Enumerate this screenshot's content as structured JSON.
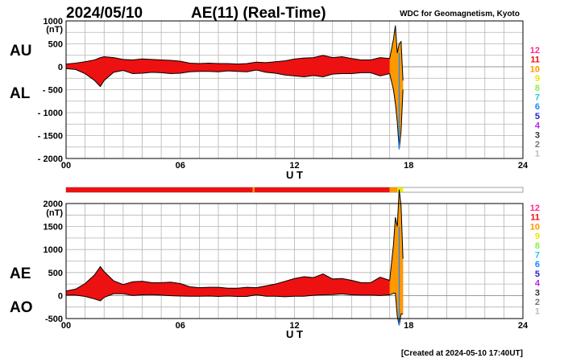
{
  "header": {
    "date": "2024/05/10",
    "title": "AE(11) (Real-Time)",
    "source": "WDC for Geomagnetism, Kyoto"
  },
  "footer": {
    "created": "[Created at 2024-05-10 17:40UT]"
  },
  "level_legend": [
    "12",
    "11",
    "10",
    "9",
    "8",
    "7",
    "6",
    "5",
    "4",
    "3",
    "2",
    "1"
  ],
  "level_colors": [
    "#ff2a8a",
    "#ee1111",
    "#ff9900",
    "#e8e800",
    "#88ee44",
    "#22ccdd",
    "#1188ff",
    "#2222cc",
    "#bb22ee",
    "#333333",
    "#777777",
    "#bbbbbb"
  ],
  "chart_data": [
    {
      "type": "area",
      "panel": "top",
      "series_labels": [
        "AU",
        "AL"
      ],
      "ylabel_unit": "(nT)",
      "xlabel": "U T",
      "xlim": [
        0,
        24
      ],
      "ylim": [
        -2000,
        1000
      ],
      "xticks": [
        "00",
        "06",
        "12",
        "18",
        "24"
      ],
      "yticks": [
        "1000",
        "500",
        "0",
        "- 500",
        "- 1000",
        "- 1500",
        "- 2000"
      ],
      "grid": true,
      "series": [
        {
          "name": "AU",
          "x": [
            0,
            0.5,
            1,
            1.5,
            1.8,
            2,
            2.5,
            3,
            3.5,
            4,
            4.5,
            5,
            5.5,
            6,
            6.5,
            7,
            7.5,
            8,
            8.5,
            9,
            9.5,
            10,
            10.5,
            11,
            11.5,
            12,
            12.5,
            13,
            13.5,
            14,
            14.5,
            15,
            15.5,
            16,
            16.5,
            17,
            17.2,
            17.3,
            17.4,
            17.5,
            17.6,
            17.7
          ],
          "y": [
            60,
            80,
            110,
            150,
            200,
            220,
            200,
            160,
            150,
            170,
            160,
            150,
            140,
            120,
            80,
            70,
            80,
            70,
            70,
            60,
            70,
            100,
            90,
            110,
            130,
            170,
            190,
            200,
            250,
            200,
            220,
            180,
            150,
            150,
            200,
            180,
            600,
            900,
            300,
            500,
            550,
            -300
          ]
        },
        {
          "name": "AL",
          "x": [
            0,
            0.5,
            1,
            1.5,
            1.8,
            2,
            2.5,
            3,
            3.5,
            4,
            4.5,
            5,
            5.5,
            6,
            6.5,
            7,
            7.5,
            8,
            8.5,
            9,
            9.5,
            10,
            10.5,
            11,
            11.5,
            12,
            12.5,
            13,
            13.5,
            14,
            14.5,
            15,
            15.5,
            16,
            16.5,
            17,
            17.2,
            17.3,
            17.4,
            17.5,
            17.6,
            17.7
          ],
          "y": [
            -40,
            -60,
            -150,
            -300,
            -430,
            -300,
            -120,
            -80,
            -150,
            -140,
            -120,
            -130,
            -150,
            -140,
            -110,
            -100,
            -100,
            -110,
            -90,
            -100,
            -110,
            -70,
            -120,
            -140,
            -180,
            -200,
            -220,
            -190,
            -220,
            -160,
            -150,
            -150,
            -130,
            -130,
            -200,
            -150,
            -500,
            -800,
            -1200,
            -1800,
            -1400,
            -500
          ]
        }
      ]
    },
    {
      "type": "area",
      "panel": "bottom",
      "series_labels": [
        "AE",
        "AO"
      ],
      "ylabel_unit": "(nT)",
      "xlabel": "U T",
      "xlim": [
        0,
        24
      ],
      "ylim": [
        -500,
        2000
      ],
      "xticks": [
        "00",
        "06",
        "12",
        "18",
        "24"
      ],
      "yticks": [
        "2000",
        "1500",
        "1000",
        "500",
        "0",
        "-500"
      ],
      "grid": true,
      "series": [
        {
          "name": "AE",
          "x": [
            0,
            0.5,
            1,
            1.5,
            1.8,
            2,
            2.5,
            3,
            3.5,
            4,
            4.5,
            5,
            5.5,
            6,
            6.5,
            7,
            7.5,
            8,
            8.5,
            9,
            9.5,
            10,
            10.5,
            11,
            11.5,
            12,
            12.5,
            13,
            13.5,
            14,
            14.5,
            15,
            15.5,
            16,
            16.5,
            17,
            17.2,
            17.3,
            17.4,
            17.5,
            17.6,
            17.7
          ],
          "y": [
            100,
            140,
            260,
            450,
            630,
            520,
            320,
            240,
            300,
            310,
            280,
            280,
            290,
            260,
            190,
            170,
            180,
            180,
            160,
            160,
            180,
            170,
            210,
            250,
            310,
            370,
            410,
            390,
            470,
            360,
            370,
            330,
            280,
            280,
            400,
            330,
            1100,
            1700,
            1500,
            2300,
            1950,
            800
          ]
        },
        {
          "name": "AO",
          "x": [
            0,
            0.5,
            1,
            1.5,
            1.8,
            2,
            2.5,
            3,
            3.5,
            4,
            4.5,
            5,
            5.5,
            6,
            6.5,
            7,
            7.5,
            8,
            8.5,
            9,
            9.5,
            10,
            10.5,
            11,
            11.5,
            12,
            12.5,
            13,
            13.5,
            14,
            14.5,
            15,
            15.5,
            16,
            16.5,
            17,
            17.2,
            17.3,
            17.4,
            17.5,
            17.6,
            17.7
          ],
          "y": [
            10,
            10,
            -20,
            -75,
            -115,
            -40,
            40,
            40,
            0,
            15,
            20,
            10,
            -5,
            -10,
            -15,
            -15,
            -10,
            -20,
            -10,
            -20,
            -20,
            15,
            -15,
            -15,
            -25,
            -15,
            -15,
            5,
            15,
            20,
            35,
            15,
            10,
            10,
            0,
            15,
            50,
            50,
            -450,
            -650,
            -400,
            -400
          ]
        }
      ]
    }
  ],
  "activity_bar": {
    "segments": [
      {
        "from": 0,
        "to": 9.8,
        "level": "11"
      },
      {
        "from": 9.8,
        "to": 9.9,
        "level": "10"
      },
      {
        "from": 9.9,
        "to": 17.0,
        "level": "11"
      },
      {
        "from": 17.0,
        "to": 17.4,
        "level": "10"
      },
      {
        "from": 17.4,
        "to": 17.7,
        "level": "9"
      }
    ]
  }
}
